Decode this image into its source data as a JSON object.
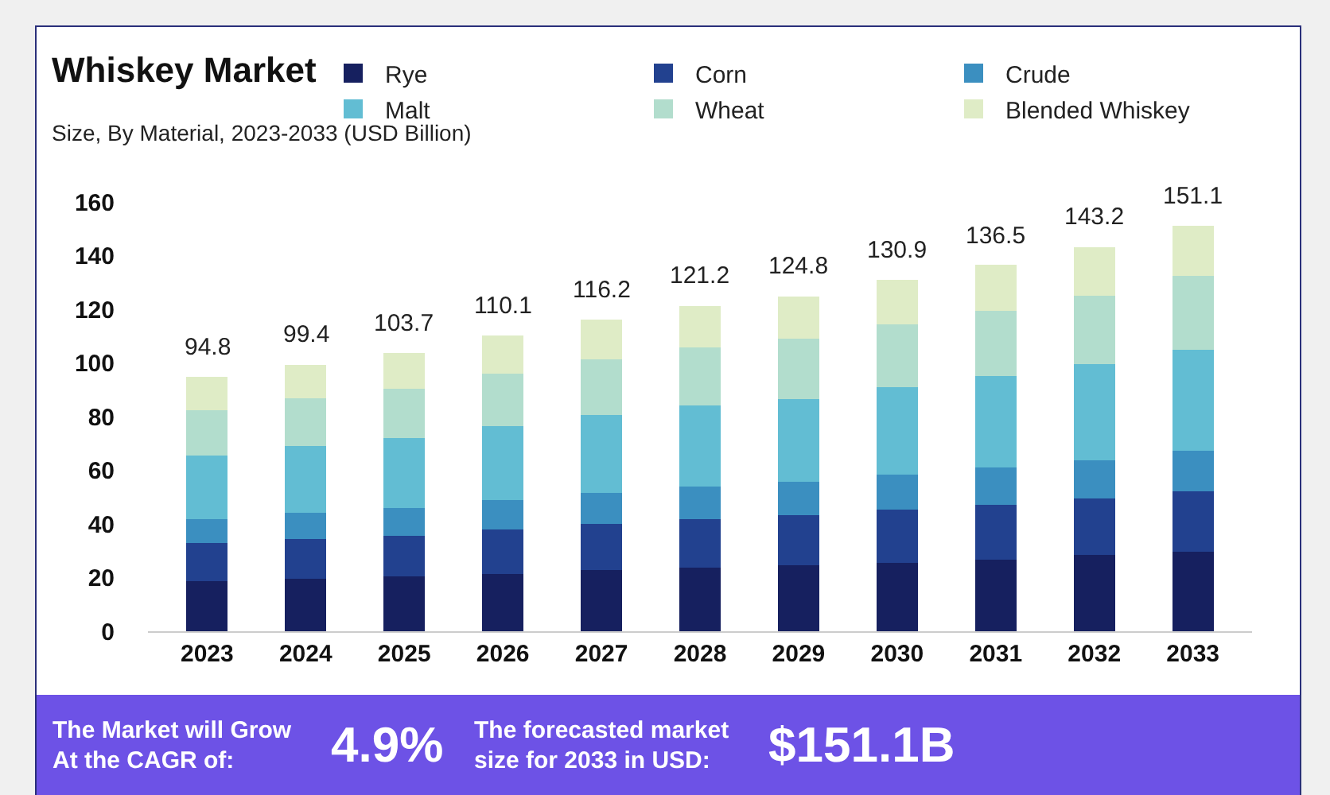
{
  "chart_data": {
    "type": "bar",
    "stacked": true,
    "title": "Whiskey Market",
    "subtitle": "Size, By Material, 2023-2033 (USD Billion)",
    "categories": [
      "2023",
      "2024",
      "2025",
      "2026",
      "2027",
      "2028",
      "2029",
      "2030",
      "2031",
      "2032",
      "2033"
    ],
    "series": [
      {
        "name": "Rye",
        "color": "#16205f",
        "values": [
          18.6,
          19.5,
          20.3,
          21.4,
          22.8,
          23.7,
          24.7,
          25.6,
          26.8,
          28.3,
          29.6
        ]
      },
      {
        "name": "Corn",
        "color": "#22418f",
        "values": [
          14.2,
          14.8,
          15.4,
          16.6,
          17.2,
          18.2,
          18.6,
          19.6,
          20.3,
          21.2,
          22.6
        ]
      },
      {
        "name": "Crude",
        "color": "#3b8fc0",
        "values": [
          9.1,
          9.9,
          10.2,
          10.8,
          11.6,
          12.0,
          12.3,
          13.2,
          13.8,
          14.3,
          15.2
        ]
      },
      {
        "name": "Malt",
        "color": "#62bdd3",
        "values": [
          23.6,
          24.7,
          26.2,
          27.7,
          29.0,
          30.2,
          30.9,
          32.7,
          34.2,
          35.8,
          37.5
        ]
      },
      {
        "name": "Wheat",
        "color": "#b2ddcd",
        "values": [
          16.9,
          18.0,
          18.4,
          19.5,
          20.7,
          21.6,
          22.6,
          23.3,
          24.3,
          25.4,
          27.4
        ]
      },
      {
        "name": "Blended Whiskey",
        "color": "#dfecc6",
        "values": [
          12.4,
          12.5,
          13.2,
          14.1,
          14.9,
          15.5,
          15.7,
          16.5,
          17.1,
          18.2,
          18.8
        ]
      }
    ],
    "totals": [
      "94.8",
      "99.4",
      "103.7",
      "110.1",
      "116.2",
      "121.2",
      "124.8",
      "130.9",
      "136.5",
      "143.2",
      "151.1"
    ],
    "ylim": [
      0,
      160
    ],
    "yticks": [
      0,
      20,
      40,
      60,
      80,
      100,
      120,
      140,
      160
    ],
    "grid": false,
    "legend": "top right",
    "annotations": [
      "The Market will Grow At the CAGR of:",
      "4.9%",
      "The forecasted market size for 2033 in USD:",
      "$151.1B"
    ]
  }
}
